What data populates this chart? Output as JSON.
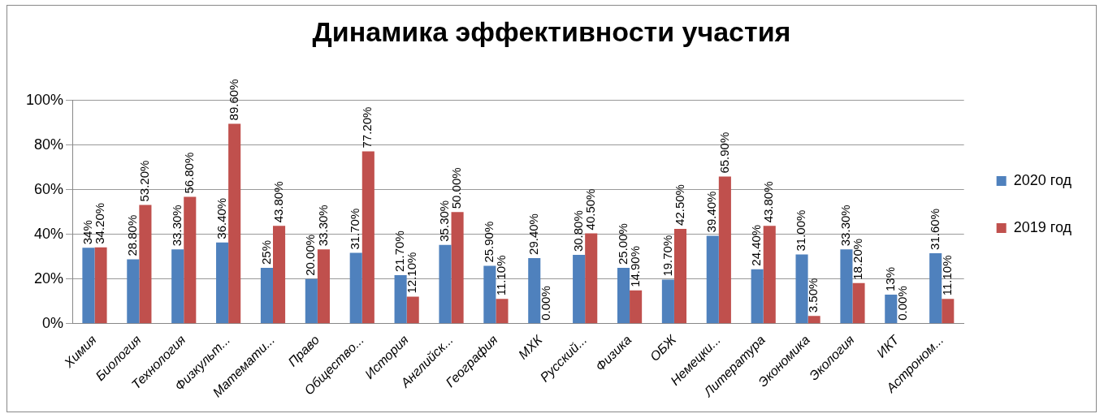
{
  "chart_data": {
    "type": "bar",
    "title": "Динамика эффективности участия",
    "categories": [
      "Химия",
      "Биология",
      "Технология",
      "Физкульт...",
      "Математи...",
      "Право",
      "Обществo...",
      "История",
      "Английск...",
      "География",
      "МХК",
      "Русский...",
      "Физика",
      "ОБЖ",
      "Немецки...",
      "Литература",
      "Экономика",
      "Экология",
      "ИКТ",
      "Астроном..."
    ],
    "series": [
      {
        "name": "2020 год",
        "color": "#4f81bd",
        "values": [
          34,
          28.8,
          33.3,
          36.4,
          25,
          20,
          31.7,
          21.7,
          35.3,
          25.9,
          29.4,
          30.8,
          25,
          19.7,
          39.4,
          24.4,
          31,
          33.3,
          13,
          31.6
        ],
        "value_labels": [
          "34%",
          "28.80%",
          "33.30%",
          "36.40%",
          "25%",
          "20.00%",
          "31.70%",
          "21.70%",
          "35.30%",
          "25.90%",
          "29.40%",
          "30.80%",
          "25.00%",
          "19.70%",
          "39.40%",
          "24.40%",
          "31.00%",
          "33.30%",
          "13%",
          "31.60%"
        ]
      },
      {
        "name": "2019 год",
        "color": "#c0504d",
        "values": [
          34.2,
          53.2,
          56.8,
          89.6,
          43.8,
          33.3,
          77.2,
          12.1,
          50,
          11.1,
          0,
          40.5,
          14.9,
          42.5,
          65.9,
          43.8,
          3.5,
          18.2,
          0,
          11.1
        ],
        "value_labels": [
          "34.20%",
          "53.20%",
          "56.80%",
          "89.60%",
          "43.80%",
          "33.30%",
          "77.20%",
          "12.10%",
          "50.00%",
          "11.10%",
          "0.00%",
          "40.50%",
          "14.90%",
          "42.50%",
          "65.90%",
          "43.80%",
          "3.50%",
          "18.20%",
          "0.00%",
          "11.10%"
        ]
      }
    ],
    "ylim": [
      0,
      100
    ],
    "yticks": [
      {
        "value": 0,
        "label": "0%"
      },
      {
        "value": 20,
        "label": "20%"
      },
      {
        "value": 40,
        "label": "40%"
      },
      {
        "value": 60,
        "label": "60%"
      },
      {
        "value": 80,
        "label": "80%"
      },
      {
        "value": 100,
        "label": "100%"
      }
    ],
    "grid": "y",
    "legend": "right"
  }
}
